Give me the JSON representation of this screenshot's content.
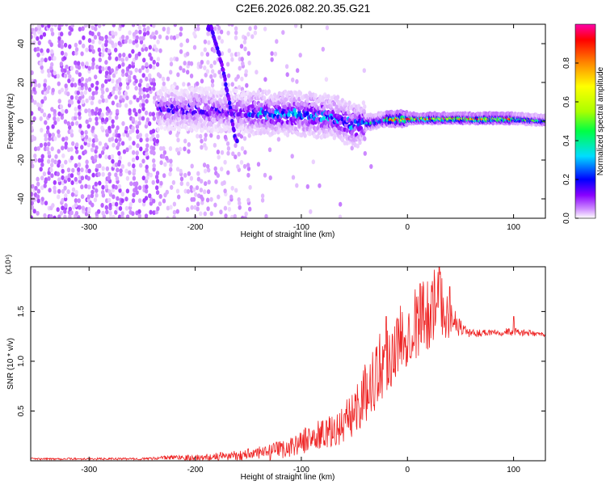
{
  "title": "C2E6.2026.082.20.35.G21",
  "chart_data": [
    {
      "type": "heatmap",
      "xlabel": "Height of straight line (km)",
      "ylabel": "Frequency (Hz)",
      "xlim": [
        -355,
        130
      ],
      "ylim": [
        -50,
        50
      ],
      "xticks": [
        -300,
        -200,
        -100,
        0,
        100
      ],
      "yticks": [
        -40,
        -20,
        0,
        20,
        40
      ],
      "colorbar": {
        "label": "Normalized spectral amplitude",
        "range": [
          0,
          1
        ],
        "ticks": [
          "0.0",
          "0.2",
          "0.4",
          "0.6",
          "0.8"
        ],
        "colors": [
          "#ffffff",
          "#cc88ff",
          "#8800ff",
          "#0000ff",
          "#00ddff",
          "#00ff44",
          "#aaff00",
          "#ffff00",
          "#ff8800",
          "#ff0000",
          "#ff00aa"
        ]
      },
      "features": [
        {
          "name": "dominant-frequency-trace",
          "points": [
            [
              -230,
              7
            ],
            [
              -200,
              6
            ],
            [
              -160,
              5
            ],
            [
              -130,
              4
            ],
            [
              -100,
              4
            ],
            [
              -70,
              2
            ],
            [
              -50,
              -2
            ],
            [
              -40,
              -1
            ],
            [
              -20,
              1
            ],
            [
              0,
              1.5
            ],
            [
              50,
              1.5
            ],
            [
              100,
              1.5
            ],
            [
              130,
              0.5
            ]
          ]
        },
        {
          "name": "sweeping-trace",
          "points": [
            [
              -185,
              48
            ],
            [
              -175,
              30
            ],
            [
              -168,
              10
            ],
            [
              -162,
              -10
            ]
          ]
        }
      ]
    },
    {
      "type": "line",
      "xlabel": "Height of straight line (km)",
      "ylabel": "SNR (10 * v/v)",
      "yscale_label": "(x10⁴)",
      "xlim": [
        -355,
        130
      ],
      "ylim": [
        0,
        1.95
      ],
      "xticks": [
        -300,
        -200,
        -100,
        0,
        100
      ],
      "yticks": [
        "0.5",
        "1.0",
        "1.5"
      ],
      "color": "#ee2222",
      "envelope": [
        [
          -355,
          0.02
        ],
        [
          -250,
          0.02
        ],
        [
          -215,
          0.04
        ],
        [
          -200,
          0.03
        ],
        [
          -160,
          0.06
        ],
        [
          -130,
          0.09
        ],
        [
          -110,
          0.15
        ],
        [
          -90,
          0.25
        ],
        [
          -70,
          0.3
        ],
        [
          -55,
          0.45
        ],
        [
          -40,
          0.7
        ],
        [
          -25,
          1.0
        ],
        [
          -10,
          1.2
        ],
        [
          0,
          1.35
        ],
        [
          15,
          1.5
        ],
        [
          30,
          1.65
        ],
        [
          40,
          1.45
        ],
        [
          50,
          1.35
        ],
        [
          60,
          1.28
        ],
        [
          80,
          1.3
        ],
        [
          100,
          1.3
        ],
        [
          130,
          1.27
        ]
      ],
      "noise": [
        [
          -355,
          0.01
        ],
        [
          -250,
          0.01
        ],
        [
          -160,
          0.05
        ],
        [
          -110,
          0.1
        ],
        [
          -60,
          0.2
        ],
        [
          -40,
          0.3
        ],
        [
          -20,
          0.4
        ],
        [
          0,
          0.35
        ],
        [
          20,
          0.4
        ],
        [
          35,
          0.3
        ],
        [
          45,
          0.12
        ],
        [
          60,
          0.04
        ],
        [
          100,
          0.04
        ],
        [
          130,
          0.02
        ]
      ],
      "spikes": [
        [
          -150,
          0.12
        ],
        [
          -80,
          0.4
        ],
        [
          -20,
          1.45
        ],
        [
          12,
          1.78
        ],
        [
          30,
          1.95
        ],
        [
          40,
          1.75
        ],
        [
          100,
          1.45
        ]
      ]
    }
  ]
}
